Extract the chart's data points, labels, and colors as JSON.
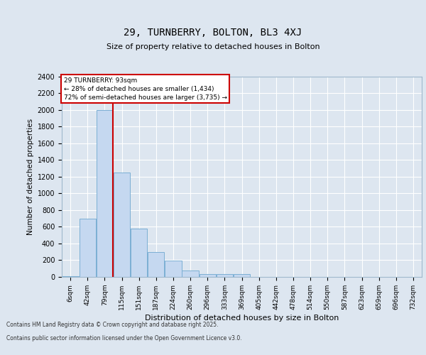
{
  "title1": "29, TURNBERRY, BOLTON, BL3 4XJ",
  "title2": "Size of property relative to detached houses in Bolton",
  "xlabel": "Distribution of detached houses by size in Bolton",
  "ylabel": "Number of detached properties",
  "categories": [
    "6sqm",
    "42sqm",
    "79sqm",
    "115sqm",
    "151sqm",
    "187sqm",
    "224sqm",
    "260sqm",
    "296sqm",
    "333sqm",
    "369sqm",
    "405sqm",
    "442sqm",
    "478sqm",
    "514sqm",
    "550sqm",
    "587sqm",
    "623sqm",
    "659sqm",
    "696sqm",
    "732sqm"
  ],
  "bar_values": [
    10,
    700,
    2000,
    1250,
    580,
    300,
    195,
    75,
    30,
    30,
    30,
    0,
    0,
    0,
    0,
    0,
    0,
    0,
    0,
    0,
    0
  ],
  "bar_color": "#c5d8f0",
  "bar_edge_color": "#7bafd4",
  "vline_color": "#cc0000",
  "vline_pos": 2.5,
  "annotation_text": "29 TURNBERRY: 93sqm\n← 28% of detached houses are smaller (1,434)\n72% of semi-detached houses are larger (3,735) →",
  "background_color": "#dde6f0",
  "grid_color": "#ffffff",
  "ylim": [
    0,
    2400
  ],
  "yticks": [
    0,
    200,
    400,
    600,
    800,
    1000,
    1200,
    1400,
    1600,
    1800,
    2000,
    2200,
    2400
  ],
  "footer_line1": "Contains HM Land Registry data © Crown copyright and database right 2025.",
  "footer_line2": "Contains public sector information licensed under the Open Government Licence v3.0."
}
